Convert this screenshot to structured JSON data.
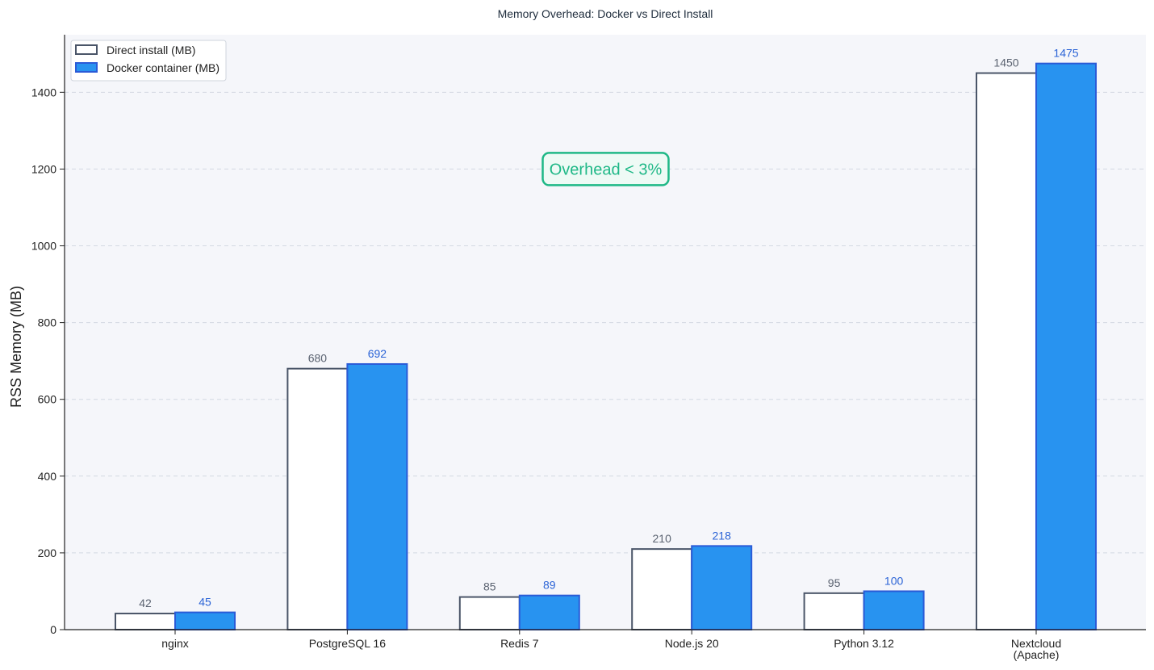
{
  "chart_data": {
    "type": "bar",
    "title": "Memory Overhead: Docker vs Direct Install",
    "xlabel": "",
    "ylabel": "RSS Memory (MB)",
    "categories": [
      "nginx",
      "PostgreSQL 16",
      "Redis 7",
      "Node.js 20",
      "Python 3.12",
      "Nextcloud\n(Apache)"
    ],
    "series": [
      {
        "name": "Direct install (MB)",
        "values": [
          42,
          680,
          85,
          210,
          95,
          1450
        ],
        "fill": "#ffffff",
        "stroke": "#4a5568",
        "label_color": "#5a6270"
      },
      {
        "name": "Docker container (MB)",
        "values": [
          45,
          692,
          89,
          218,
          100,
          1475
        ],
        "fill": "#2893f0",
        "stroke": "#2a5bd7",
        "label_color": "#2a63d6"
      }
    ],
    "ylim": [
      0,
      1550
    ],
    "yticks": [
      0,
      200,
      400,
      600,
      800,
      1000,
      1200,
      1400
    ],
    "grid": true,
    "legend_position": "top-left",
    "annotation": {
      "text": "Overhead < 3%",
      "x": 2.5,
      "y": 1200,
      "color": "#1fb887",
      "background": "#eefaf5"
    },
    "background": "#f5f6fa"
  }
}
